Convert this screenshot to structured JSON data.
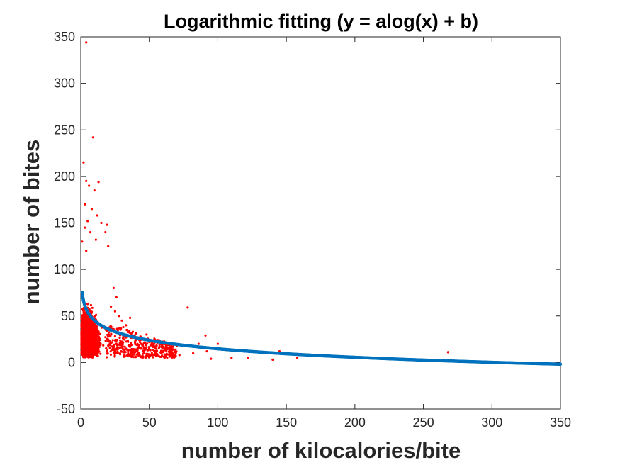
{
  "chart_data": {
    "type": "scatter",
    "title": "Logarithmic fitting (y = alog(x) + b)",
    "xlabel": "number of kilocalories/bite",
    "ylabel": "number of bites",
    "xlim": [
      0,
      350
    ],
    "ylim": [
      -50,
      350
    ],
    "x_ticks": [
      "0",
      "50",
      "100",
      "150",
      "200",
      "250",
      "300",
      "350"
    ],
    "y_ticks": [
      "-50",
      "0",
      "50",
      "100",
      "150",
      "200",
      "250",
      "300",
      "350"
    ],
    "grid": false,
    "legend": "none",
    "series": [
      {
        "kind": "scatter",
        "color": "#ff0000",
        "points": [
          [
            4,
            344
          ],
          [
            9,
            242
          ],
          [
            2,
            215
          ],
          [
            4,
            195
          ],
          [
            6,
            190
          ],
          [
            10,
            185
          ],
          [
            13,
            194
          ],
          [
            3,
            170
          ],
          [
            8,
            165
          ],
          [
            12,
            158
          ],
          [
            5,
            152
          ],
          [
            15,
            150
          ],
          [
            19,
            148
          ],
          [
            18,
            140
          ],
          [
            3,
            145
          ],
          [
            7,
            140
          ],
          [
            11,
            132
          ],
          [
            20,
            125
          ],
          [
            1,
            130
          ],
          [
            4,
            120
          ],
          [
            78,
            59
          ],
          [
            91,
            29
          ],
          [
            100,
            20
          ],
          [
            92,
            12
          ],
          [
            110,
            5
          ],
          [
            122,
            5
          ],
          [
            140,
            3
          ],
          [
            145,
            12
          ],
          [
            158,
            5
          ],
          [
            181,
            7
          ],
          [
            268,
            11
          ],
          [
            346,
            -1
          ],
          [
            60,
            15
          ],
          [
            65,
            12
          ],
          [
            70,
            18
          ],
          [
            57,
            24
          ],
          [
            50,
            22
          ],
          [
            48,
            30
          ],
          [
            44,
            20
          ],
          [
            40,
            25
          ],
          [
            38,
            33
          ],
          [
            35,
            18
          ],
          [
            42,
            15
          ],
          [
            55,
            10
          ],
          [
            30,
            45
          ],
          [
            28,
            50
          ],
          [
            25,
            55
          ],
          [
            33,
            40
          ],
          [
            36,
            48
          ],
          [
            22,
            60
          ],
          [
            26,
            70
          ],
          [
            24,
            80
          ],
          [
            31,
            38
          ],
          [
            29,
            30
          ],
          [
            46,
            10
          ],
          [
            52,
            8
          ],
          [
            72,
            8
          ],
          [
            82,
            10
          ],
          [
            86,
            20
          ],
          [
            95,
            4
          ]
        ]
      },
      {
        "kind": "fit-line",
        "color": "#0072bd",
        "a": -13.2,
        "b": 75.5,
        "x_range": [
          1,
          350
        ]
      }
    ]
  },
  "cloud_color": "#ff0000",
  "fit_color": "#0072bd"
}
